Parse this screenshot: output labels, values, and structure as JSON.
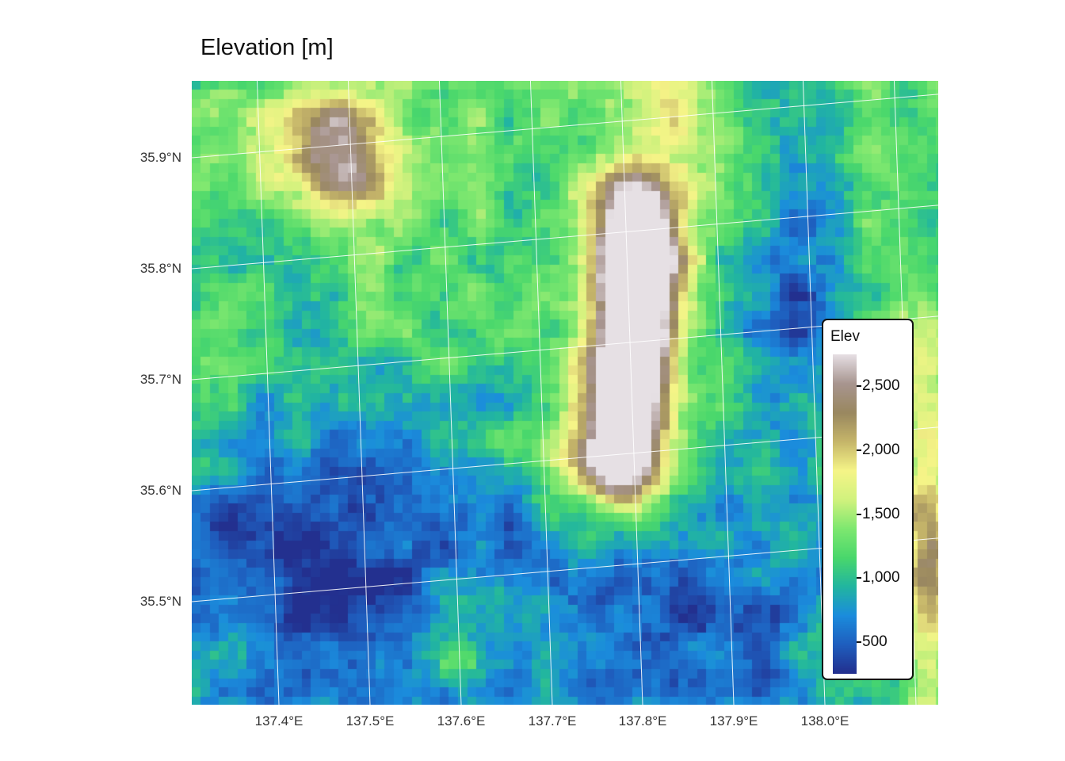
{
  "title": "Elevation [m]",
  "map": {
    "lat_labels": [
      "35.9°N",
      "35.8°N",
      "35.7°N",
      "35.6°N",
      "35.5°N"
    ],
    "lat_values": [
      35.9,
      35.8,
      35.7,
      35.6,
      35.5
    ],
    "lon_labels": [
      "137.4°E",
      "137.5°E",
      "137.6°E",
      "137.7°E",
      "137.8°E",
      "137.9°E",
      "138.0°E"
    ],
    "lon_values": [
      137.4,
      137.5,
      137.6,
      137.7,
      137.8,
      137.9,
      138.0
    ],
    "graticule_color": "#ffffff"
  },
  "legend": {
    "title": "Elev",
    "labels": [
      "500",
      "1,000",
      "1,500",
      "2,000",
      "2,500"
    ],
    "values": [
      500,
      1000,
      1500,
      2000,
      2500
    ],
    "range": [
      250,
      2750
    ],
    "palette": [
      "#23308f",
      "#1f5fbf",
      "#1b8ddd",
      "#22b6a0",
      "#4ad86c",
      "#7fe870",
      "#d2f27e",
      "#f6f588",
      "#c6b66a",
      "#9a8860",
      "#a89590",
      "#e6e0e4"
    ]
  }
}
